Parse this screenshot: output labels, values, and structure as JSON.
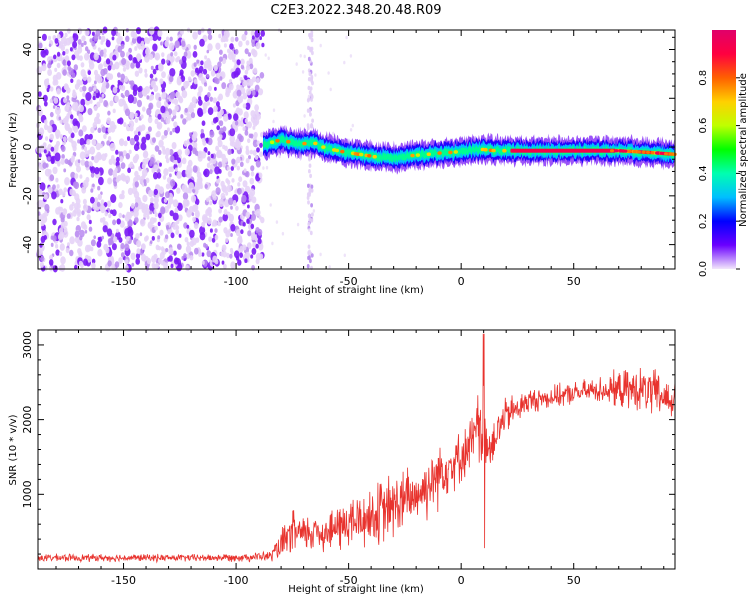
{
  "title": "C2E3.2022.348.20.48.R09",
  "chart_data": [
    {
      "type": "heatmap",
      "xlabel": "Height of straight line (km)",
      "ylabel": "Frequency (Hz)",
      "xlim": [
        -188,
        95
      ],
      "ylim": [
        -50,
        48
      ],
      "x_ticks": [
        -150,
        -100,
        -50,
        0,
        50
      ],
      "y_ticks": [
        -40,
        -20,
        0,
        20,
        40
      ],
      "noise_region_x": [
        -188,
        -88
      ],
      "sporadic_noise_columns_x": [
        -68,
        -66
      ],
      "signal_track": {
        "x": [
          -88,
          -80,
          -72,
          -66,
          -60,
          -52,
          -45,
          -38,
          -30,
          -22,
          -15,
          -10,
          -5,
          0,
          5,
          10,
          15,
          20,
          30,
          40,
          50,
          60,
          70,
          80,
          88,
          95
        ],
        "frequency": [
          1,
          3,
          1,
          2,
          -0.5,
          -2,
          -3,
          -4,
          -4.5,
          -3.5,
          -3,
          -2.5,
          -2.2,
          -1.8,
          -1.2,
          -1,
          -1.5,
          -1.5,
          -1.5,
          -1.5,
          -1.5,
          -1.5,
          -1.5,
          -2,
          -2.5,
          -3
        ],
        "peak_amplitude_from_x": 22
      },
      "colorbar": {
        "label": "Normalized spectral amplitude",
        "range": [
          0.0,
          1.0
        ],
        "ticks": [
          "0.0",
          "0.2",
          "0.4",
          "0.6",
          "0.8"
        ],
        "tick_values": [
          0.0,
          0.2,
          0.4,
          0.6,
          0.8
        ],
        "colormap": [
          "#f2e6fb",
          "#6a00ff",
          "#0000ff",
          "#00bfff",
          "#00ffb0",
          "#00ff00",
          "#bfff00",
          "#ffd000",
          "#ff6000",
          "#ff0040",
          "#e0006a"
        ]
      }
    },
    {
      "type": "line",
      "xlabel": "Height of straight line (km)",
      "ylabel": "SNR (10 * v/v)",
      "xlim": [
        -188,
        95
      ],
      "ylim": [
        0,
        3200
      ],
      "x_ticks": [
        -150,
        -100,
        -50,
        0,
        50
      ],
      "y_ticks": [
        1000,
        2000,
        3000
      ],
      "color": "#e8332e",
      "series": [
        {
          "x": [
            -188,
            -170,
            -150,
            -130,
            -110,
            -95,
            -85,
            -80,
            -75,
            -70,
            -65,
            -60,
            -55,
            -50,
            -45,
            -40,
            -35,
            -30,
            -25,
            -20,
            -15,
            -10,
            -5,
            0,
            5,
            8,
            10,
            12,
            15,
            20,
            25,
            30,
            40,
            50,
            60,
            70,
            80,
            85,
            90,
            95
          ],
          "values": [
            150,
            150,
            150,
            150,
            150,
            160,
            170,
            300,
            500,
            450,
            520,
            480,
            550,
            620,
            650,
            700,
            750,
            850,
            900,
            1000,
            1100,
            1300,
            1400,
            1500,
            1700,
            1900,
            2000,
            1600,
            1800,
            2050,
            2150,
            2250,
            2300,
            2350,
            2400,
            2400,
            2400,
            2350,
            2300,
            2250
          ],
          "spread": [
            60,
            60,
            60,
            60,
            60,
            70,
            80,
            250,
            350,
            300,
            350,
            300,
            400,
            450,
            450,
            500,
            550,
            550,
            550,
            450,
            500,
            550,
            450,
            400,
            450,
            700,
            650,
            450,
            350,
            300,
            250,
            200,
            180,
            180,
            200,
            300,
            350,
            400,
            350,
            300
          ]
        }
      ]
    }
  ]
}
